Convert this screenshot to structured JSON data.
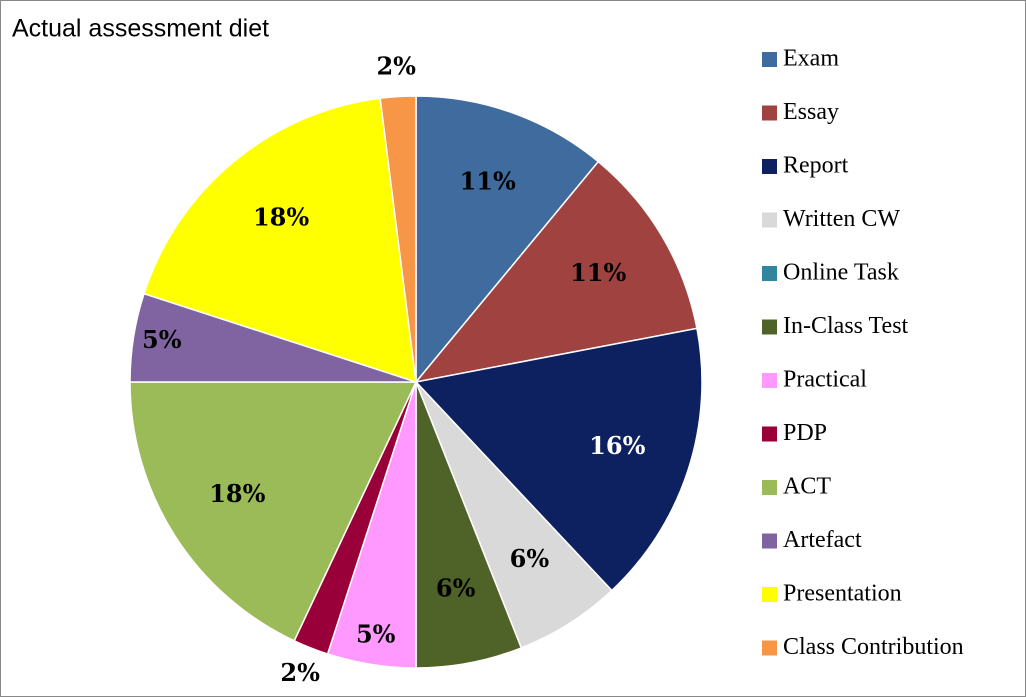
{
  "chart_data": {
    "type": "pie",
    "title": "Actual assessment diet",
    "categories": [
      "Exam",
      "Essay",
      "Report",
      "Written CW",
      "Online Task",
      "In-Class Test",
      "Practical",
      "PDP",
      "ACT",
      "Artefact",
      "Presentation",
      "Class Contribution"
    ],
    "values": [
      11,
      11,
      16,
      6,
      0,
      6,
      5,
      2,
      18,
      5,
      18,
      2
    ],
    "value_labels": [
      "11%",
      "11%",
      "16%",
      "6%",
      null,
      "6%",
      "5%",
      "2%",
      "18%",
      "5%",
      "18%",
      "2%"
    ],
    "colors": [
      "#3f6b9e",
      "#a04340",
      "#0d2160",
      "#d9d9d9",
      "#31859c",
      "#4f6228",
      "#ff99ff",
      "#99003a",
      "#9bbb59",
      "#8064a2",
      "#ffff00",
      "#f79646"
    ]
  }
}
